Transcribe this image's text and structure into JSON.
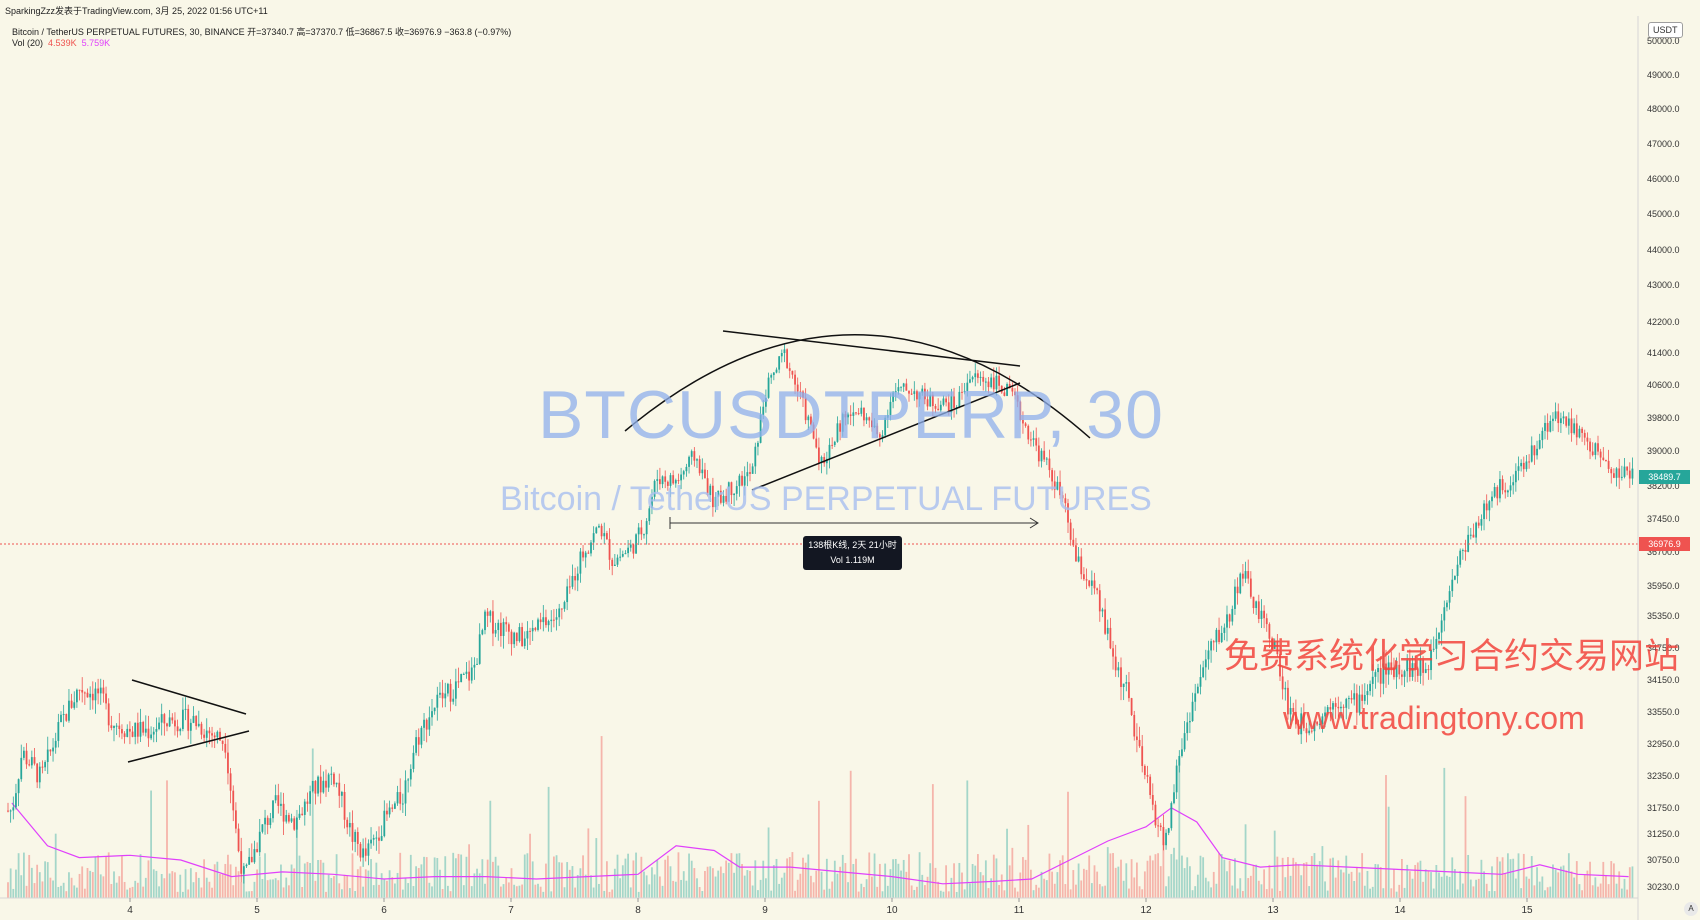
{
  "header": {
    "author_line": "SparkingZzz发表于TradingView.com, 3月 25, 2022 01:56 UTC+11",
    "symbol_line": "Bitcoin / TetherUS PERPETUAL FUTURES, 30, BINANCE  开=37340.7  高=37370.7  低=36867.5  收=36976.9  −363.8 (−0.97%)",
    "vol_label": "Vol (20)",
    "vol_value_1": "4.539K",
    "vol_value_2": "5.759K"
  },
  "watermark": {
    "symbol": "BTCUSDTPERP, 30",
    "name": "Bitcoin / TetherUS PERPETUAL FUTURES"
  },
  "promo": {
    "cn_text": "免费系统化学习合约交易网站",
    "url": "www.tradingtony.com"
  },
  "measure": {
    "line1": "138根K线, 2天 21小时",
    "line2": "Vol 1.119M"
  },
  "axis": {
    "currency_badge": "USDT",
    "auto_label": "A",
    "current_price_tag": "38489.7",
    "close_price_tag": "36976.9"
  },
  "colors": {
    "background": "#f9f7e8",
    "up": "#26a69a",
    "down": "#ef5350",
    "vol_ma": "#e040fb",
    "watermark": "#8fb0ec",
    "promo": "#f2453d"
  },
  "chart_data": {
    "type": "candlestick",
    "exchange": "BINANCE",
    "interval": "30",
    "y_ticks": [
      50000,
      49000,
      48000,
      47000,
      46000,
      45000,
      44000,
      43000,
      42200,
      41400,
      40600,
      39800,
      39000,
      38200,
      37450,
      36700,
      35950,
      35350,
      34750,
      34150,
      33550,
      32950,
      32350,
      31750,
      31250,
      30750,
      30230
    ],
    "x_ticks": [
      "4",
      "5",
      "6",
      "7",
      "8",
      "9",
      "10",
      "11",
      "12",
      "13",
      "14",
      "15"
    ],
    "price_path": [
      [
        3.07,
        31700
      ],
      [
        3.15,
        32800
      ],
      [
        3.3,
        32300
      ],
      [
        3.45,
        33300
      ],
      [
        3.6,
        34000
      ],
      [
        3.75,
        33900
      ],
      [
        3.85,
        33400
      ],
      [
        4.0,
        33200
      ],
      [
        4.15,
        33200
      ],
      [
        4.3,
        33400
      ],
      [
        4.5,
        33400
      ],
      [
        4.6,
        33200
      ],
      [
        4.75,
        33000
      ],
      [
        4.85,
        31000
      ],
      [
        4.9,
        30400
      ],
      [
        5.05,
        31400
      ],
      [
        5.15,
        31800
      ],
      [
        5.3,
        31500
      ],
      [
        5.45,
        32100
      ],
      [
        5.6,
        32400
      ],
      [
        5.75,
        31200
      ],
      [
        5.85,
        30800
      ],
      [
        6.0,
        31500
      ],
      [
        6.15,
        32000
      ],
      [
        6.25,
        33000
      ],
      [
        6.4,
        33700
      ],
      [
        6.55,
        34000
      ],
      [
        6.7,
        34300
      ],
      [
        6.8,
        35300
      ],
      [
        6.95,
        35100
      ],
      [
        7.1,
        34900
      ],
      [
        7.25,
        35200
      ],
      [
        7.4,
        35400
      ],
      [
        7.55,
        36600
      ],
      [
        7.7,
        37300
      ],
      [
        7.8,
        36500
      ],
      [
        7.95,
        36800
      ],
      [
        8.05,
        37300
      ],
      [
        8.15,
        38400
      ],
      [
        8.3,
        38300
      ],
      [
        8.45,
        38900
      ],
      [
        8.6,
        37800
      ],
      [
        8.75,
        38200
      ],
      [
        8.9,
        38500
      ],
      [
        9.0,
        40400
      ],
      [
        9.15,
        41400
      ],
      [
        9.3,
        40100
      ],
      [
        9.45,
        38700
      ],
      [
        9.6,
        39700
      ],
      [
        9.75,
        40000
      ],
      [
        9.9,
        39300
      ],
      [
        10.0,
        40400
      ],
      [
        10.15,
        40500
      ],
      [
        10.3,
        40200
      ],
      [
        10.5,
        40100
      ],
      [
        10.6,
        40800
      ],
      [
        10.8,
        40700
      ],
      [
        10.95,
        40300
      ],
      [
        11.05,
        39600
      ],
      [
        11.15,
        39000
      ],
      [
        11.25,
        38500
      ],
      [
        11.35,
        37800
      ],
      [
        11.45,
        36500
      ],
      [
        11.6,
        35800
      ],
      [
        11.75,
        34500
      ],
      [
        11.85,
        33900
      ],
      [
        11.95,
        32700
      ],
      [
        12.05,
        31800
      ],
      [
        12.15,
        31000
      ],
      [
        12.25,
        32600
      ],
      [
        12.35,
        33600
      ],
      [
        12.5,
        34700
      ],
      [
        12.65,
        35300
      ],
      [
        12.75,
        36300
      ],
      [
        12.9,
        35300
      ],
      [
        13.0,
        34900
      ],
      [
        13.1,
        33800
      ],
      [
        13.2,
        33300
      ],
      [
        13.35,
        33400
      ],
      [
        13.5,
        33800
      ],
      [
        13.65,
        33700
      ],
      [
        13.8,
        34200
      ],
      [
        13.95,
        34400
      ],
      [
        14.05,
        34400
      ],
      [
        14.2,
        34300
      ],
      [
        14.35,
        35600
      ],
      [
        14.5,
        36800
      ],
      [
        14.65,
        37600
      ],
      [
        14.8,
        38200
      ],
      [
        14.95,
        38500
      ],
      [
        15.1,
        39300
      ],
      [
        15.2,
        39900
      ],
      [
        15.35,
        39600
      ],
      [
        15.5,
        39100
      ],
      [
        15.6,
        38800
      ],
      [
        15.7,
        38500
      ],
      [
        15.8,
        38480
      ]
    ],
    "volume_ma_path": [
      [
        3.07,
        4000
      ],
      [
        3.35,
        2200
      ],
      [
        3.6,
        1700
      ],
      [
        4.0,
        1800
      ],
      [
        4.4,
        1600
      ],
      [
        4.8,
        900
      ],
      [
        5.2,
        1100
      ],
      [
        5.6,
        1000
      ],
      [
        6.0,
        800
      ],
      [
        6.4,
        900
      ],
      [
        6.8,
        900
      ],
      [
        7.2,
        800
      ],
      [
        7.6,
        900
      ],
      [
        8.0,
        1000
      ],
      [
        8.3,
        2200
      ],
      [
        8.6,
        2000
      ],
      [
        8.8,
        1300
      ],
      [
        9.2,
        1300
      ],
      [
        9.6,
        1100
      ],
      [
        10.0,
        900
      ],
      [
        10.4,
        600
      ],
      [
        10.8,
        700
      ],
      [
        11.1,
        800
      ],
      [
        11.4,
        1600
      ],
      [
        11.7,
        2400
      ],
      [
        12.0,
        3000
      ],
      [
        12.2,
        3800
      ],
      [
        12.4,
        3200
      ],
      [
        12.6,
        1700
      ],
      [
        12.9,
        1300
      ],
      [
        13.2,
        1400
      ],
      [
        13.6,
        1300
      ],
      [
        14.0,
        1200
      ],
      [
        14.4,
        1100
      ],
      [
        14.8,
        1000
      ],
      [
        15.1,
        1400
      ],
      [
        15.4,
        1000
      ],
      [
        15.8,
        900
      ]
    ],
    "close_price": 36976.9,
    "current_price": 38489.7,
    "grid": false
  }
}
